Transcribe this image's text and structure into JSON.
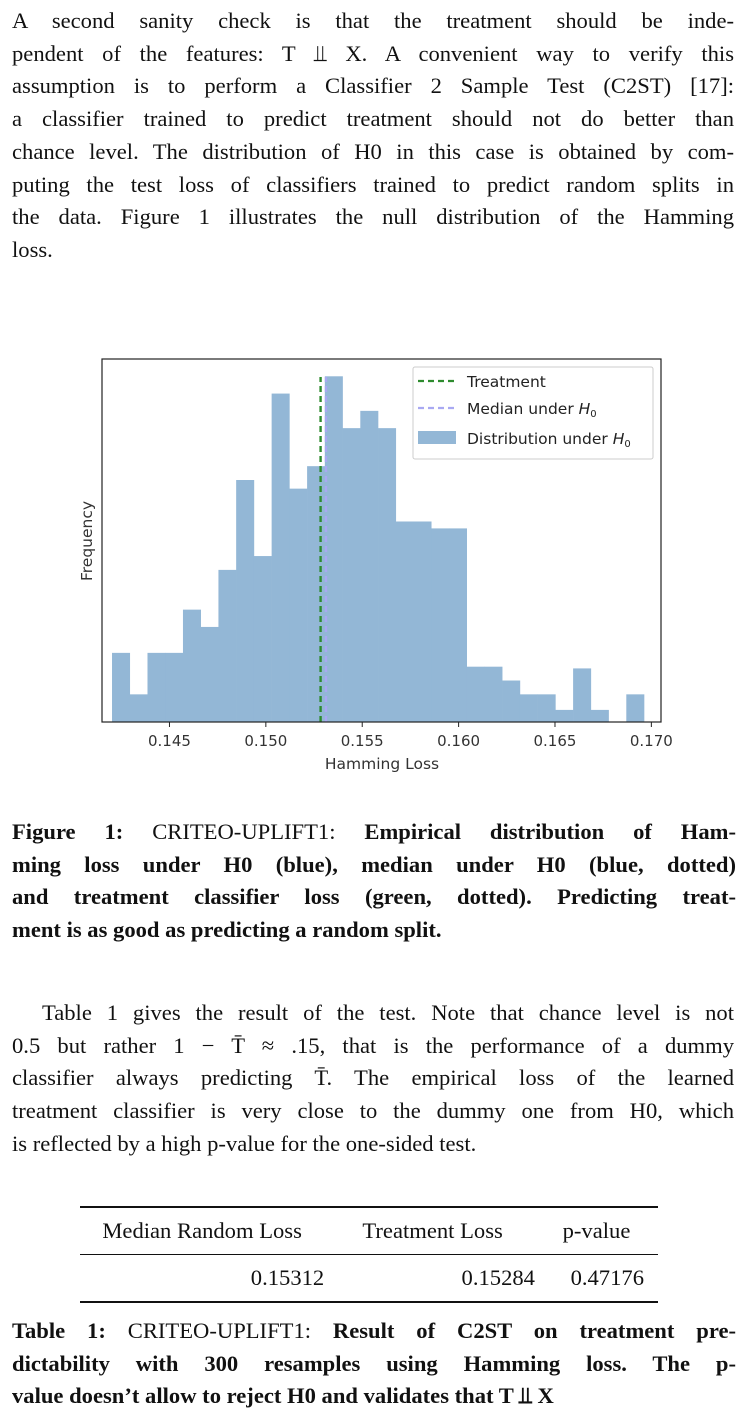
{
  "paragraph1": {
    "lines": [
      "A second sanity check is that the treatment should be inde-",
      "pendent of the features: T ⫫ X. A convenient way to verify this",
      "assumption is to perform a Classifier 2 Sample Test (C2ST) [17]:",
      "a classifier trained to predict treatment should not do better than",
      "chance level. The distribution of H0 in this case is obtained by com-",
      "puting the test loss of classifiers trained to predict random splits in",
      "the data. Figure 1 illustrates the null distribution of the Hamming",
      "loss."
    ]
  },
  "figure": {
    "caption": {
      "label": "Figure 1:",
      "dataset": "CRITEO-UPLIFT1:",
      "lines": [
        "Empirical distribution of Ham-",
        "ming loss under H0 (blue), median under H0 (blue, dotted)",
        "and treatment classifier loss (green, dotted). Predicting treat-",
        "ment is as good as predicting a random split."
      ]
    }
  },
  "chart_data": {
    "type": "bar",
    "title": "",
    "xlabel": "Hamming Loss",
    "ylabel": "Frequency",
    "xlim": [
      0.1415,
      0.1705
    ],
    "ylim": [
      0,
      21
    ],
    "x_ticks": [
      "0.145",
      "0.150",
      "0.155",
      "0.160",
      "0.165",
      "0.170"
    ],
    "y_ticks_shown": false,
    "grid": false,
    "legend_position": "top-right",
    "legend": [
      "Treatment",
      "Median under H0",
      "Distribution under H0"
    ],
    "colors": {
      "histogram": "#93b7d6",
      "treatment_line": "#2e8b2e",
      "median_line": "#a9a9f2"
    },
    "series": [
      {
        "name": "Distribution under H0",
        "bin_width": 0.00092,
        "bin_starts": [
          0.14202,
          0.14294,
          0.14386,
          0.14478,
          0.1457,
          0.14662,
          0.14754,
          0.14846,
          0.14938,
          0.1503,
          0.15122,
          0.15214,
          0.15306,
          0.15398,
          0.1549,
          0.15582,
          0.15674,
          0.15766,
          0.15858,
          0.1595,
          0.16042,
          0.16134,
          0.16226,
          0.16318,
          0.1641,
          0.16502,
          0.16594,
          0.16686,
          0.16778,
          0.1687
        ],
        "values": [
          4,
          1.6,
          4,
          4,
          6.5,
          5.5,
          8.8,
          14,
          9.6,
          19,
          13.5,
          14.8,
          20,
          17,
          18,
          17,
          11.6,
          11.6,
          11.2,
          11.2,
          3.2,
          3.2,
          2.4,
          1.6,
          1.6,
          0.7,
          3.1,
          0.7,
          0,
          1.6
        ]
      }
    ],
    "treatment_loss": 0.15284,
    "median_under_h0": 0.15312
  },
  "paragraph2": {
    "lines": [
      "Table 1 gives the result of the test. Note that chance level is not",
      "0.5 but rather 1 − T̄ ≈ .15, that is the performance of a dummy",
      "classifier always predicting T̄. The empirical loss of the learned",
      "treatment classifier is very close to the dummy one from H0, which",
      "is reflected by a high p-value for the one-sided test."
    ]
  },
  "table": {
    "headers": [
      "Median Random Loss",
      "Treatment Loss",
      "p-value"
    ],
    "rows": [
      [
        "0.15312",
        "0.15284",
        "0.47176"
      ]
    ],
    "caption": {
      "label": "Table 1:",
      "dataset": "CRITEO-UPLIFT1:",
      "lines": [
        "Result of C2ST on treatment pre-",
        "dictability with 300 resamples using Hamming loss. The p-",
        "value doesn’t allow to reject H0 and validates that T ⫫ X"
      ]
    }
  }
}
